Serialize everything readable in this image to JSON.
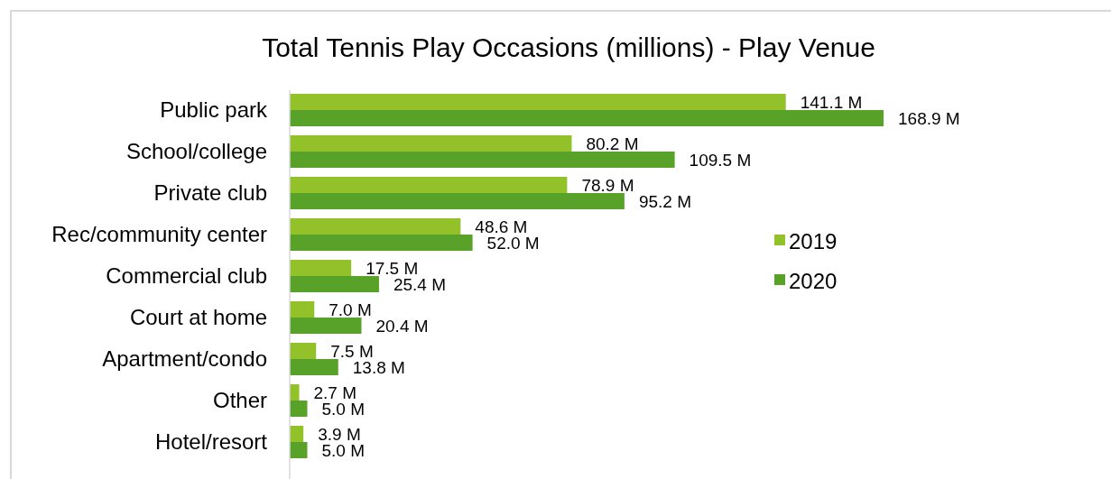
{
  "chart_data": {
    "type": "bar",
    "orientation": "horizontal",
    "title": "Total Tennis Play Occasions (millions) - Play Venue",
    "categories": [
      "Public park",
      "School/college",
      "Private club",
      "Rec/community center",
      "Commercial club",
      "Court at home",
      "Apartment/condo",
      "Other",
      "Hotel/resort"
    ],
    "series": [
      {
        "name": "2019",
        "color": "#92c12a",
        "values": [
          141.1,
          80.2,
          78.9,
          48.6,
          17.5,
          7.0,
          7.5,
          2.7,
          3.9
        ],
        "value_labels": [
          "141.1 M",
          "80.2 M",
          "78.9 M",
          "48.6 M",
          "17.5 M",
          "7.0 M",
          "7.5 M",
          "2.7 M",
          "3.9 M"
        ]
      },
      {
        "name": "2020",
        "color": "#58a22a",
        "values": [
          168.9,
          109.5,
          95.2,
          52.0,
          25.4,
          20.4,
          13.8,
          5.0,
          5.0
        ],
        "value_labels": [
          "168.9 M",
          "109.5 M",
          "95.2 M",
          "52.0 M",
          "25.4 M",
          "20.4 M",
          "13.8 M",
          "5.0 M",
          "5.0 M"
        ]
      }
    ],
    "legend": "right"
  }
}
